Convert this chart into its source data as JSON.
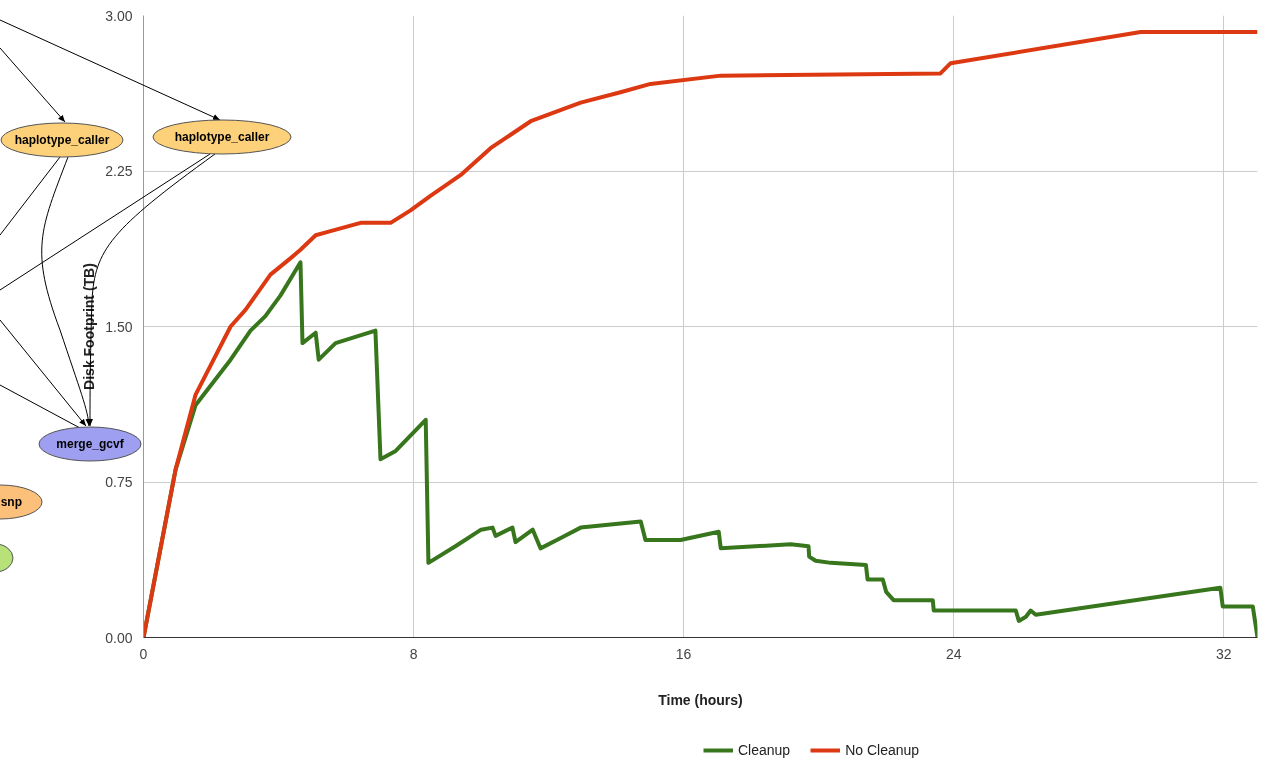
{
  "chart_data": {
    "type": "line",
    "xlabel": "Time (hours)",
    "ylabel": "Disk Footprint (TB)",
    "xlim": [
      0,
      33
    ],
    "ylim": [
      0,
      3
    ],
    "xticks": [
      0,
      8,
      16,
      24,
      32
    ],
    "yticks": [
      {
        "value": 0,
        "label": "0.00"
      },
      {
        "value": 0.75,
        "label": "0.75"
      },
      {
        "value": 1.5,
        "label": "1.50"
      },
      {
        "value": 2.25,
        "label": "2.25"
      },
      {
        "value": 3,
        "label": "3.00"
      }
    ],
    "grid": true,
    "legend": "bottom",
    "line_style": "solid",
    "series": [
      {
        "name": "Cleanup",
        "color": "#38761d",
        "x": [
          0,
          0.95,
          1.54,
          2.58,
          3.17,
          3.61,
          4.06,
          4.65,
          4.71,
          5.1,
          5.19,
          5.69,
          6.87,
          7.02,
          7.47,
          8.36,
          8.44,
          9.24,
          10.0,
          10.34,
          10.43,
          10.93,
          11.02,
          11.53,
          11.76,
          12.36,
          12.95,
          14.73,
          14.87,
          15.91,
          17.04,
          17.1,
          19.17,
          19.7,
          19.72,
          19.91,
          20.36,
          21.4,
          21.45,
          21.9,
          22.0,
          22.22,
          23.38,
          23.41,
          25.84,
          25.93,
          26.14,
          26.28,
          26.43,
          31.9,
          31.97,
          32.86,
          33.0
        ],
        "values": [
          0,
          0.81,
          1.12,
          1.34,
          1.48,
          1.55,
          1.65,
          1.81,
          1.42,
          1.47,
          1.34,
          1.42,
          1.48,
          0.86,
          0.9,
          1.05,
          0.36,
          0.44,
          0.52,
          0.53,
          0.49,
          0.53,
          0.46,
          0.52,
          0.43,
          0.48,
          0.53,
          0.56,
          0.47,
          0.47,
          0.51,
          0.43,
          0.45,
          0.44,
          0.39,
          0.37,
          0.36,
          0.35,
          0.28,
          0.28,
          0.22,
          0.18,
          0.18,
          0.13,
          0.13,
          0.08,
          0.1,
          0.13,
          0.11,
          0.24,
          0.15,
          0.15,
          0
        ]
      },
      {
        "name": "No Cleanup",
        "color": "#dc3912",
        "x": [
          0,
          0.95,
          1.54,
          2.58,
          3.02,
          3.76,
          4.36,
          4.65,
          5.1,
          5.54,
          6.43,
          7.32,
          7.91,
          8.5,
          9.39,
          10.28,
          11.47,
          12.95,
          14.13,
          15.02,
          17.1,
          23.6,
          23.91,
          29.54,
          33.0
        ],
        "values": [
          0,
          0.81,
          1.17,
          1.5,
          1.58,
          1.75,
          1.83,
          1.87,
          1.94,
          1.96,
          2.0,
          2.0,
          2.06,
          2.13,
          2.23,
          2.36,
          2.49,
          2.58,
          2.63,
          2.67,
          2.71,
          2.72,
          2.77,
          2.92,
          2.92
        ]
      }
    ],
    "annotations": [
      "haplotype_caller",
      "haplotype_caller",
      "merge_gcvf",
      "snp"
    ]
  }
}
